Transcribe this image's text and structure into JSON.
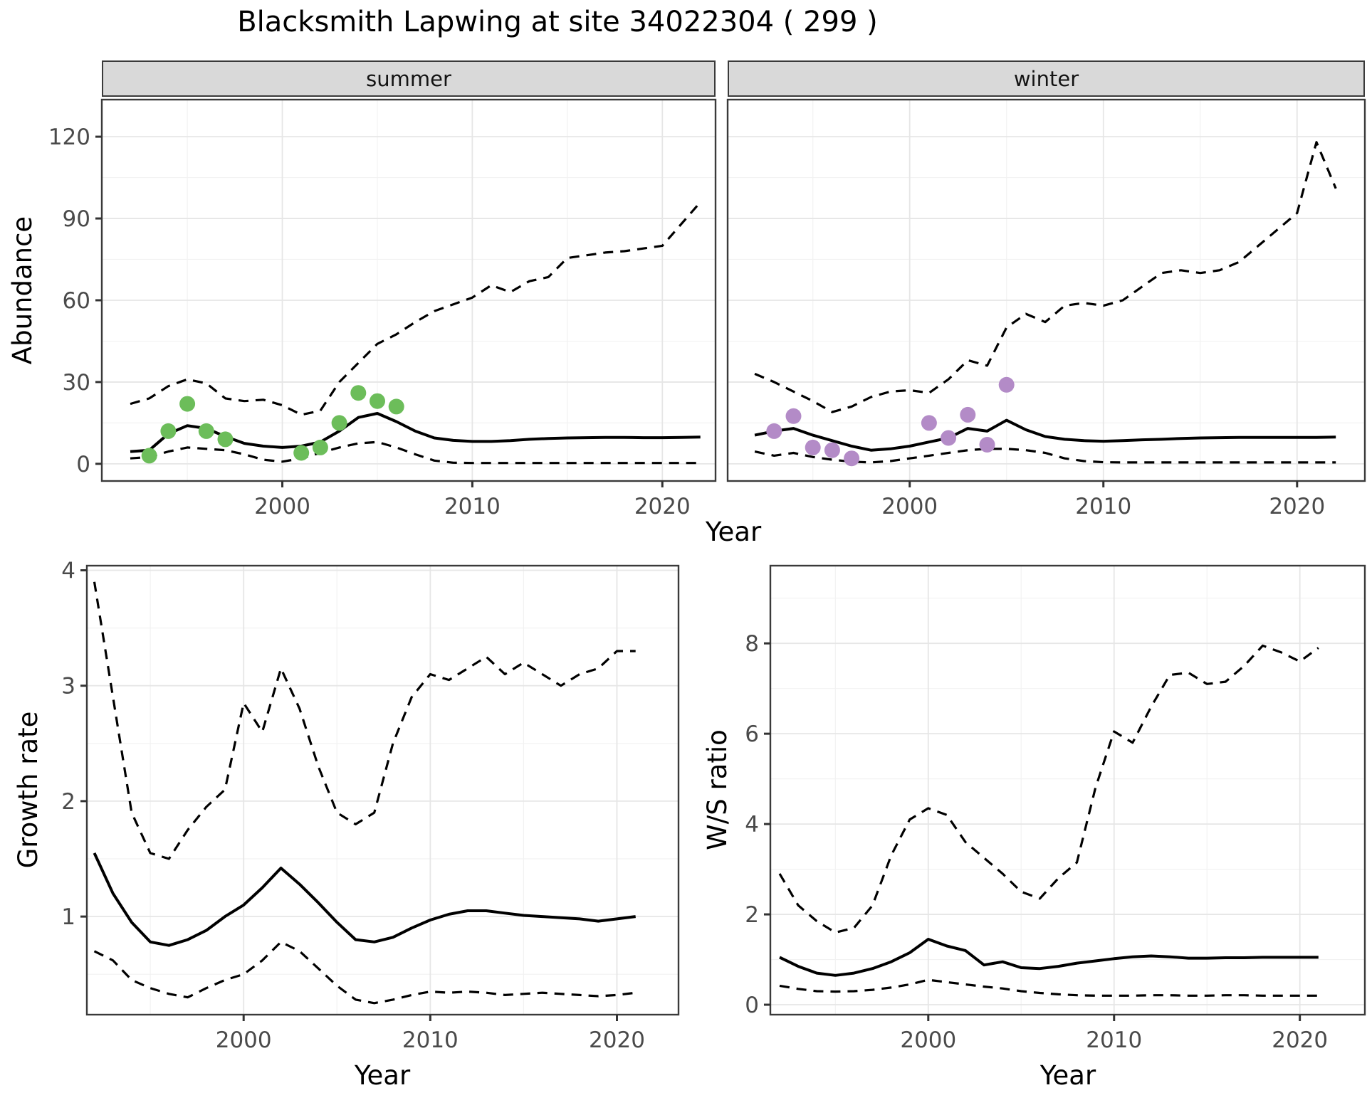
{
  "title": "Blacksmith Lapwing at site 34022304 ( 299 )",
  "facets": {
    "summer": "summer",
    "winter": "winter"
  },
  "axis_titles": {
    "abundance": "Abundance",
    "year": "Year",
    "growth_rate": "Growth rate",
    "ws_ratio": "W/S ratio"
  },
  "colors": {
    "dot_summer": "#6cbd5a",
    "dot_winter": "#b38bc7",
    "line": "#000000",
    "grid_major": "#e6e6e6",
    "grid_minor": "#f2f2f2",
    "panel_border": "#3a3a3a",
    "tick_mark": "#333333",
    "tick_text": "#4a4a4a"
  },
  "chart_data": [
    {
      "id": "abundance_summer",
      "type": "line",
      "facet": "summer",
      "ylabel": "Abundance",
      "xlabel": "Year",
      "xlim": [
        1990.5,
        2022.8
      ],
      "ylim": [
        -6.3,
        133.6
      ],
      "x_ticks": [
        2000,
        2010,
        2020
      ],
      "x_minor": [
        1995,
        2005,
        2015
      ],
      "y_ticks": [
        0,
        30,
        60,
        90,
        120
      ],
      "y_minor": [
        15,
        45,
        75,
        105
      ],
      "x": [
        1992,
        1993,
        1994,
        1995,
        1996,
        1997,
        1998,
        1999,
        2000,
        2001,
        2002,
        2003,
        2004,
        2005,
        2006,
        2007,
        2008,
        2009,
        2010,
        2011,
        2012,
        2013,
        2014,
        2015,
        2016,
        2017,
        2018,
        2019,
        2020,
        2021,
        2022
      ],
      "series": [
        {
          "name": "median",
          "linetype": "solid",
          "values": [
            4.5,
            5,
            11,
            14,
            13,
            10,
            7.5,
            6.5,
            6,
            6.5,
            8,
            12,
            17,
            18.5,
            15.5,
            12,
            9.5,
            8.6,
            8.2,
            8.2,
            8.5,
            9,
            9.3,
            9.5,
            9.6,
            9.7,
            9.7,
            9.6,
            9.6,
            9.7,
            9.8
          ]
        },
        {
          "name": "upper_ci",
          "linetype": "dashed",
          "values": [
            22,
            24,
            28.5,
            31,
            29.5,
            24,
            23,
            23.5,
            21.5,
            18,
            19.5,
            30,
            37,
            44,
            47.5,
            52,
            56,
            58.5,
            61,
            65.5,
            63,
            67,
            68.5,
            75.5,
            76.5,
            77.5,
            78,
            79,
            80,
            88,
            96
          ]
        },
        {
          "name": "lower_ci",
          "linetype": "dashed",
          "values": [
            2,
            2.5,
            4.5,
            6,
            5.5,
            5,
            3.5,
            1.5,
            0.8,
            2,
            4,
            6,
            7.5,
            8,
            6,
            3.5,
            1.2,
            0.4,
            0.3,
            0.3,
            0.3,
            0.3,
            0.3,
            0.3,
            0.3,
            0.3,
            0.3,
            0.3,
            0.3,
            0.3,
            0.3
          ]
        }
      ],
      "points": {
        "name": "observed_counts_summer",
        "color_key": "dot_summer",
        "years": [
          1993,
          1994,
          1995,
          1996,
          1997,
          2001,
          2002,
          2003,
          2004,
          2005,
          2006
        ],
        "values": [
          3,
          12,
          22,
          12,
          9,
          4,
          6,
          15,
          26,
          23,
          21
        ]
      }
    },
    {
      "id": "abundance_winter",
      "type": "line",
      "facet": "winter",
      "ylabel": "Abundance",
      "xlabel": "Year",
      "xlim": [
        1990.6,
        2023.5
      ],
      "ylim": [
        -6.3,
        133.6
      ],
      "x_ticks": [
        2000,
        2010,
        2020
      ],
      "x_minor": [
        1995,
        2005,
        2015
      ],
      "y_ticks": [
        0,
        30,
        60,
        90,
        120
      ],
      "y_minor": [
        15,
        45,
        75,
        105
      ],
      "x": [
        1992,
        1993,
        1994,
        1995,
        1996,
        1997,
        1998,
        1999,
        2000,
        2001,
        2002,
        2003,
        2004,
        2005,
        2006,
        2007,
        2008,
        2009,
        2010,
        2011,
        2012,
        2013,
        2014,
        2015,
        2016,
        2017,
        2018,
        2019,
        2020,
        2021,
        2022
      ],
      "series": [
        {
          "name": "median",
          "linetype": "solid",
          "values": [
            10.5,
            12,
            13,
            10.5,
            8.5,
            6.5,
            5,
            5.5,
            6.5,
            8,
            9.5,
            13,
            12,
            16,
            12.5,
            10,
            9,
            8.5,
            8.3,
            8.5,
            8.8,
            9,
            9.3,
            9.5,
            9.6,
            9.7,
            9.7,
            9.7,
            9.7,
            9.7,
            9.8
          ]
        },
        {
          "name": "upper_ci",
          "linetype": "dashed",
          "values": [
            33,
            30,
            26.5,
            23,
            19,
            21,
            24.5,
            26.5,
            27,
            26,
            31,
            38,
            36,
            50,
            55,
            52,
            58,
            59,
            58,
            60,
            65,
            70,
            71,
            70,
            71,
            74,
            80,
            86,
            92,
            118,
            101
          ]
        },
        {
          "name": "lower_ci",
          "linetype": "dashed",
          "values": [
            4.5,
            3,
            4,
            2.5,
            1.5,
            0.8,
            0.5,
            1,
            2,
            3,
            4,
            5,
            5.5,
            5.5,
            5,
            4,
            2,
            1,
            0.6,
            0.5,
            0.5,
            0.5,
            0.5,
            0.5,
            0.5,
            0.5,
            0.5,
            0.5,
            0.5,
            0.5,
            0.5
          ]
        }
      ],
      "points": {
        "name": "observed_counts_winter",
        "color_key": "dot_winter",
        "years": [
          1993,
          1994,
          1995,
          1996,
          1997,
          2001,
          2002,
          2003,
          2004,
          2005
        ],
        "values": [
          12,
          17.5,
          6,
          5,
          2,
          15,
          9.5,
          18,
          7,
          29
        ]
      }
    },
    {
      "id": "growth_rate",
      "type": "line",
      "ylabel": "Growth rate",
      "xlabel": "Year",
      "xlim": [
        1991.6,
        2023.3
      ],
      "ylim": [
        0.15,
        4.04
      ],
      "x_ticks": [
        2000,
        2010,
        2020
      ],
      "x_minor": [
        1995,
        2005,
        2015
      ],
      "y_ticks": [
        1,
        2,
        3,
        4
      ],
      "y_minor": [
        0.5,
        1.5,
        2.5,
        3.5
      ],
      "x": [
        1992,
        1993,
        1994,
        1995,
        1996,
        1997,
        1998,
        1999,
        2000,
        2001,
        2002,
        2003,
        2004,
        2005,
        2006,
        2007,
        2008,
        2009,
        2010,
        2011,
        2012,
        2013,
        2014,
        2015,
        2016,
        2017,
        2018,
        2019,
        2020,
        2021
      ],
      "series": [
        {
          "name": "median",
          "linetype": "solid",
          "values": [
            1.55,
            1.2,
            0.95,
            0.78,
            0.75,
            0.8,
            0.88,
            1.0,
            1.1,
            1.25,
            1.42,
            1.28,
            1.12,
            0.95,
            0.8,
            0.78,
            0.82,
            0.9,
            0.97,
            1.02,
            1.05,
            1.05,
            1.03,
            1.01,
            1.0,
            0.99,
            0.98,
            0.96,
            0.98,
            1.0
          ]
        },
        {
          "name": "upper_ci",
          "linetype": "dashed",
          "values": [
            3.9,
            2.9,
            1.9,
            1.55,
            1.5,
            1.75,
            1.95,
            2.1,
            2.85,
            2.6,
            3.15,
            2.8,
            2.3,
            1.9,
            1.8,
            1.9,
            2.5,
            2.9,
            3.1,
            3.05,
            3.15,
            3.25,
            3.1,
            3.2,
            3.1,
            3.0,
            3.1,
            3.15,
            3.3,
            3.3
          ]
        },
        {
          "name": "lower_ci",
          "linetype": "dashed",
          "values": [
            0.7,
            0.62,
            0.45,
            0.38,
            0.33,
            0.3,
            0.38,
            0.45,
            0.5,
            0.62,
            0.78,
            0.7,
            0.55,
            0.4,
            0.28,
            0.25,
            0.28,
            0.32,
            0.35,
            0.34,
            0.35,
            0.34,
            0.32,
            0.33,
            0.34,
            0.33,
            0.32,
            0.31,
            0.32,
            0.34
          ]
        }
      ]
    },
    {
      "id": "ws_ratio",
      "type": "line",
      "ylabel": "W/S ratio",
      "xlabel": "Year",
      "xlim": [
        1991.5,
        2023.5
      ],
      "ylim": [
        -0.22,
        9.72
      ],
      "x_ticks": [
        2000,
        2010,
        2020
      ],
      "x_minor": [
        1995,
        2005,
        2015
      ],
      "y_ticks": [
        0,
        2,
        4,
        6,
        8
      ],
      "y_minor": [
        1,
        3,
        5,
        7,
        9
      ],
      "x": [
        1992,
        1993,
        1994,
        1995,
        1996,
        1997,
        1998,
        1999,
        2000,
        2001,
        2002,
        2003,
        2004,
        2005,
        2006,
        2007,
        2008,
        2009,
        2010,
        2011,
        2012,
        2013,
        2014,
        2015,
        2016,
        2017,
        2018,
        2019,
        2020,
        2021
      ],
      "series": [
        {
          "name": "median",
          "linetype": "solid",
          "values": [
            1.05,
            0.85,
            0.7,
            0.65,
            0.7,
            0.8,
            0.95,
            1.15,
            1.45,
            1.3,
            1.2,
            0.88,
            0.95,
            0.82,
            0.8,
            0.85,
            0.92,
            0.97,
            1.02,
            1.06,
            1.08,
            1.06,
            1.03,
            1.03,
            1.04,
            1.04,
            1.05,
            1.05,
            1.05,
            1.05
          ]
        },
        {
          "name": "upper_ci",
          "linetype": "dashed",
          "values": [
            2.9,
            2.2,
            1.85,
            1.6,
            1.7,
            2.2,
            3.3,
            4.1,
            4.35,
            4.2,
            3.6,
            3.25,
            2.9,
            2.5,
            2.35,
            2.8,
            3.15,
            4.8,
            6.05,
            5.8,
            6.6,
            7.3,
            7.35,
            7.1,
            7.15,
            7.5,
            7.95,
            7.8,
            7.6,
            7.9
          ]
        },
        {
          "name": "lower_ci",
          "linetype": "dashed",
          "values": [
            0.42,
            0.35,
            0.3,
            0.29,
            0.3,
            0.33,
            0.38,
            0.45,
            0.55,
            0.5,
            0.45,
            0.4,
            0.36,
            0.3,
            0.26,
            0.23,
            0.21,
            0.2,
            0.2,
            0.2,
            0.21,
            0.21,
            0.2,
            0.2,
            0.21,
            0.21,
            0.2,
            0.2,
            0.2,
            0.2
          ]
        }
      ]
    }
  ]
}
